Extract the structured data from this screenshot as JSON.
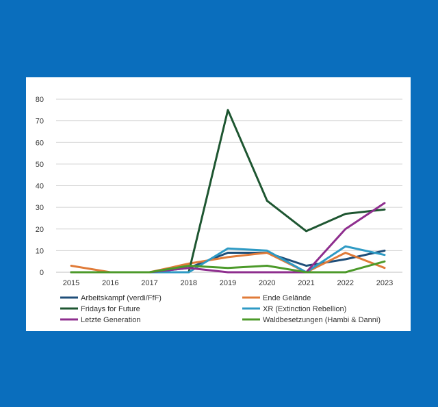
{
  "colors": {
    "background": "#0a6ebd",
    "card": "#ffffff",
    "grid": "#d0d0d0",
    "axis": "#bfbfbf"
  },
  "chart_data": {
    "type": "line",
    "title": "",
    "xlabel": "",
    "ylabel": "",
    "x": [
      "2015",
      "2016",
      "2017",
      "2018",
      "2019",
      "2020",
      "2021",
      "2022",
      "2023"
    ],
    "yticks": [
      0,
      10,
      20,
      30,
      40,
      50,
      60,
      70,
      80
    ],
    "ylim": [
      0,
      80
    ],
    "grid": true,
    "legend_position": "bottom",
    "series": [
      {
        "name": "Arbeitskampf (verdi/FfF)",
        "color": "#1f4e79",
        "values": [
          0,
          0,
          0,
          2,
          9,
          9,
          3,
          6,
          10
        ]
      },
      {
        "name": "Ende Gelände",
        "color": "#e07b39",
        "values": [
          3,
          0,
          0,
          4,
          7,
          9,
          0,
          9,
          2
        ]
      },
      {
        "name": "Fridays for Future",
        "color": "#1e5631",
        "values": [
          0,
          0,
          0,
          0,
          75,
          33,
          19,
          27,
          29
        ]
      },
      {
        "name": "XR (Extinction Rebellion)",
        "color": "#2e9ac4",
        "values": [
          0,
          0,
          0,
          0,
          11,
          10,
          0,
          12,
          8
        ]
      },
      {
        "name": "Letzte Generation",
        "color": "#8e2e8e",
        "values": [
          0,
          0,
          0,
          2,
          0,
          0,
          0,
          20,
          32
        ]
      },
      {
        "name": "Waldbesetzungen (Hambi & Danni)",
        "color": "#4c9a2a",
        "values": [
          0,
          0,
          0,
          3,
          2,
          3,
          0,
          0,
          5
        ]
      }
    ]
  }
}
